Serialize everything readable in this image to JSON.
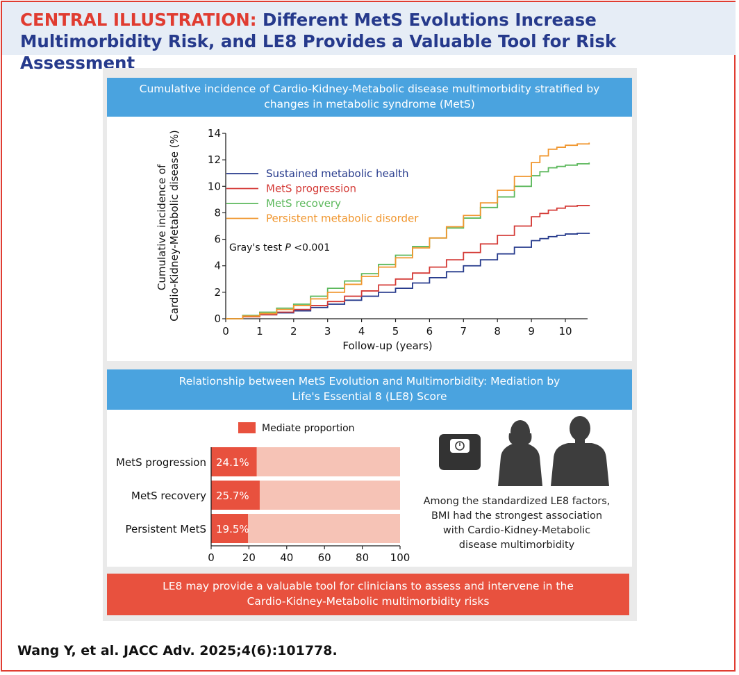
{
  "header": {
    "lead": "CENTRAL ILLUSTRATION:",
    "title_line1": "Different MetS Evolutions Increase",
    "title_line2": "Multimorbidity Risk, and LE8 Provides a Valuable Tool for Risk Assessment"
  },
  "colors": {
    "red": "#e03c31",
    "navy": "#263a8c",
    "blue": "#4aa3df",
    "bar_fill": "#e8513e",
    "bar_bg": "#f6c3b6"
  },
  "panel1": {
    "title_line1": "Cumulative incidence of Cardio-Kidney-Metabolic disease multimorbidity stratified by",
    "title_line2": "changes in metabolic syndrome (MetS)",
    "gray_test_prefix": "Gray's test ",
    "gray_test_p": "P",
    "gray_test_suffix": " <0.001"
  },
  "panel2": {
    "title_line1": "Relationship between MetS Evolution and Multimorbidity: Mediation by",
    "title_line2": "Life's Essential 8 (LE8) Score",
    "caption_lines": [
      "Among the standardized LE8 factors,",
      "BMI had the strongest association",
      "with Cardio-Kidney-Metabolic",
      "disease multimorbidity"
    ],
    "icons": [
      "bathroom-scale-icon",
      "female-silhouette-icon",
      "male-silhouette-icon"
    ]
  },
  "footer_banner": {
    "line1": "LE8 may provide a valuable tool for clinicians to assess and intervene in the",
    "line2": "Cardio-Kidney-Metabolic multimorbidity risks"
  },
  "citation": "Wang Y, et al. JACC Adv. 2025;4(6):101778.",
  "chart_data": [
    {
      "type": "line",
      "title": "",
      "xlabel": "Follow-up (years)",
      "ylabel_line1": "Cumulative incidence of",
      "ylabel_line2": "Cardio-Kidney-Metabolic disease (%)",
      "xlim": [
        0,
        10.7
      ],
      "ylim": [
        0,
        14
      ],
      "xticks": [
        0,
        1,
        2,
        3,
        4,
        5,
        6,
        7,
        8,
        9,
        10
      ],
      "yticks": [
        0,
        2,
        4,
        6,
        8,
        10,
        12,
        14
      ],
      "grid": false,
      "legend_position": "top-left",
      "series": [
        {
          "name": "Sustained metabolic health",
          "color": "#263a8c",
          "x": [
            0,
            1,
            2,
            3,
            4,
            5,
            6,
            7,
            8,
            9,
            9.5,
            10,
            10.7
          ],
          "y": [
            0,
            0.3,
            0.6,
            1.1,
            1.7,
            2.3,
            3.1,
            4.0,
            4.9,
            5.9,
            6.2,
            6.4,
            6.5
          ]
        },
        {
          "name": "MetS progression",
          "color": "#d43a36",
          "x": [
            0,
            1,
            2,
            3,
            4,
            5,
            6,
            7,
            8,
            9,
            9.5,
            10,
            10.7
          ],
          "y": [
            0,
            0.3,
            0.7,
            1.3,
            2.1,
            3.0,
            3.9,
            5.0,
            6.3,
            7.7,
            8.2,
            8.5,
            8.6
          ]
        },
        {
          "name": "MetS recovery",
          "color": "#5cb85c",
          "x": [
            0,
            1,
            2,
            3,
            4,
            5,
            6,
            7,
            8,
            9,
            9.5,
            10,
            10.7
          ],
          "y": [
            0,
            0.5,
            1.1,
            2.3,
            3.4,
            4.8,
            6.1,
            7.6,
            9.2,
            10.8,
            11.4,
            11.6,
            11.8
          ]
        },
        {
          "name": "Persistent metabolic disorder",
          "color": "#f0962e",
          "x": [
            0,
            1,
            2,
            3,
            4,
            5,
            6,
            7,
            8,
            9,
            9.5,
            10,
            10.7
          ],
          "y": [
            0,
            0.4,
            1.0,
            2.0,
            3.2,
            4.6,
            6.1,
            7.8,
            9.7,
            11.8,
            12.8,
            13.1,
            13.3
          ]
        }
      ]
    },
    {
      "type": "bar",
      "orientation": "horizontal",
      "title": "",
      "legend_label": "Mediate proportion",
      "categories": [
        "MetS progression",
        "MetS recovery",
        "Persistent MetS"
      ],
      "values": [
        24.1,
        25.7,
        19.5
      ],
      "value_labels": [
        "24.1%",
        "25.7%",
        "19.5%"
      ],
      "xlim": [
        0,
        100
      ],
      "xticks": [
        0,
        20,
        40,
        60,
        80,
        100
      ],
      "fill_color": "#e8513e",
      "background_color": "#f6c3b6"
    }
  ]
}
